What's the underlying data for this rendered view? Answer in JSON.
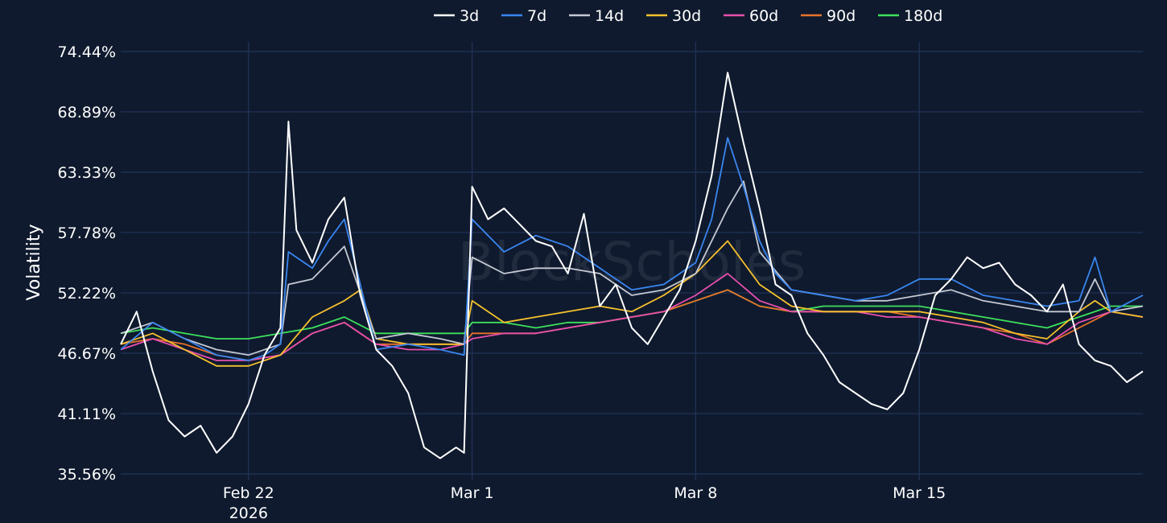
{
  "chart_data": {
    "type": "line",
    "title": "",
    "ylabel": "Volatility",
    "xlabel": "",
    "ylim": [
      35.56,
      74.44
    ],
    "yticks": [
      {
        "value": 74.44,
        "label": "74.44%"
      },
      {
        "value": 68.89,
        "label": "68.89%"
      },
      {
        "value": 63.33,
        "label": "63.33%"
      },
      {
        "value": 57.78,
        "label": "57.78%"
      },
      {
        "value": 52.22,
        "label": "52.22%"
      },
      {
        "value": 46.67,
        "label": "46.67%"
      },
      {
        "value": 41.11,
        "label": "41.11%"
      },
      {
        "value": 35.56,
        "label": "35.56%"
      }
    ],
    "x_unit": "date",
    "xlim": [
      "2026-02-18",
      "2026-03-22"
    ],
    "xticks": [
      {
        "value": "2026-02-22",
        "label": "Feb 22",
        "sublabel": "2026"
      },
      {
        "value": "2026-03-01",
        "label": "Mar 1",
        "sublabel": ""
      },
      {
        "value": "2026-03-08",
        "label": "Mar 8",
        "sublabel": ""
      },
      {
        "value": "2026-03-15",
        "label": "Mar 15",
        "sublabel": ""
      }
    ],
    "grid": true,
    "legend_position": "top",
    "watermark": "BlockScholes",
    "series": [
      {
        "name": "3d",
        "color": "#ffffff",
        "x": [
          "2026-02-18",
          "2026-02-18T12:00",
          "2026-02-19",
          "2026-02-19T12:00",
          "2026-02-20",
          "2026-02-20T12:00",
          "2026-02-21",
          "2026-02-21T12:00",
          "2026-02-22",
          "2026-02-22T12:00",
          "2026-02-23",
          "2026-02-23T06:00",
          "2026-02-23T12:00",
          "2026-02-24",
          "2026-02-24T12:00",
          "2026-02-25",
          "2026-02-25T12:00",
          "2026-02-26",
          "2026-02-26T12:00",
          "2026-02-27",
          "2026-02-27T12:00",
          "2026-02-28",
          "2026-02-28T12:00",
          "2026-02-28T18:00",
          "2026-03-01",
          "2026-03-01T12:00",
          "2026-03-02",
          "2026-03-02T12:00",
          "2026-03-03",
          "2026-03-03T12:00",
          "2026-03-04",
          "2026-03-04T12:00",
          "2026-03-05",
          "2026-03-05T12:00",
          "2026-03-06",
          "2026-03-06T12:00",
          "2026-03-07",
          "2026-03-07T12:00",
          "2026-03-08",
          "2026-03-08T12:00",
          "2026-03-09",
          "2026-03-09T12:00",
          "2026-03-10",
          "2026-03-10T12:00",
          "2026-03-11",
          "2026-03-11T12:00",
          "2026-03-12",
          "2026-03-12T12:00",
          "2026-03-13",
          "2026-03-13T12:00",
          "2026-03-14",
          "2026-03-14T12:00",
          "2026-03-15",
          "2026-03-15T12:00",
          "2026-03-16",
          "2026-03-16T12:00",
          "2026-03-17",
          "2026-03-17T12:00",
          "2026-03-18",
          "2026-03-18T12:00",
          "2026-03-19",
          "2026-03-19T12:00",
          "2026-03-20",
          "2026-03-20T12:00",
          "2026-03-21",
          "2026-03-21T12:00",
          "2026-03-22"
        ],
        "values": [
          47.5,
          50.5,
          45.0,
          40.5,
          39.0,
          40.0,
          37.5,
          39.0,
          42.0,
          46.5,
          49.0,
          68.0,
          58.0,
          55.0,
          59.0,
          61.0,
          52.0,
          47.0,
          45.5,
          43.0,
          38.0,
          37.0,
          38.0,
          37.5,
          62.0,
          59.0,
          60.0,
          58.5,
          57.0,
          56.5,
          54.0,
          59.5,
          51.0,
          53.0,
          49.0,
          47.5,
          50.0,
          52.5,
          57.0,
          63.0,
          72.5,
          66.0,
          60.0,
          53.0,
          52.0,
          48.5,
          46.5,
          44.0,
          43.0,
          42.0,
          41.5,
          43.0,
          47.0,
          52.0,
          53.5,
          55.5,
          54.5,
          55.0,
          53.0,
          52.0,
          50.5,
          53.0,
          47.5,
          46.0,
          45.5,
          44.0,
          45.0
        ]
      },
      {
        "name": "7d",
        "color": "#3a86f0",
        "x": [
          "2026-02-18",
          "2026-02-19",
          "2026-02-20",
          "2026-02-21",
          "2026-02-22",
          "2026-02-22T12:00",
          "2026-02-23",
          "2026-02-23T06:00",
          "2026-02-24",
          "2026-02-24T12:00",
          "2026-02-25",
          "2026-02-26",
          "2026-02-27",
          "2026-02-28",
          "2026-02-28T18:00",
          "2026-03-01",
          "2026-03-02",
          "2026-03-03",
          "2026-03-04",
          "2026-03-05",
          "2026-03-06",
          "2026-03-07",
          "2026-03-08",
          "2026-03-08T12:00",
          "2026-03-09",
          "2026-03-09T12:00",
          "2026-03-10",
          "2026-03-10T12:00",
          "2026-03-11",
          "2026-03-12",
          "2026-03-13",
          "2026-03-14",
          "2026-03-15",
          "2026-03-16",
          "2026-03-17",
          "2026-03-18",
          "2026-03-19",
          "2026-03-20",
          "2026-03-20T12:00",
          "2026-03-21",
          "2026-03-22"
        ],
        "values": [
          47.0,
          49.5,
          48.0,
          46.5,
          46.0,
          46.5,
          47.5,
          56.0,
          54.5,
          57.0,
          59.0,
          47.0,
          47.5,
          47.0,
          46.5,
          59.0,
          56.0,
          57.5,
          56.5,
          54.5,
          52.5,
          53.0,
          55.0,
          59.0,
          66.5,
          62.0,
          57.0,
          54.0,
          52.5,
          52.0,
          51.5,
          52.0,
          53.5,
          53.5,
          52.0,
          51.5,
          51.0,
          51.5,
          55.5,
          50.5,
          52.0
        ]
      },
      {
        "name": "14d",
        "color": "#c4c9d3",
        "x": [
          "2026-02-18",
          "2026-02-19",
          "2026-02-20",
          "2026-02-21",
          "2026-02-22",
          "2026-02-23",
          "2026-02-23T06:00",
          "2026-02-24",
          "2026-02-24T12:00",
          "2026-02-25",
          "2026-02-26",
          "2026-02-27",
          "2026-02-28",
          "2026-02-28T18:00",
          "2026-03-01",
          "2026-03-02",
          "2026-03-03",
          "2026-03-04",
          "2026-03-05",
          "2026-03-06",
          "2026-03-07",
          "2026-03-08",
          "2026-03-09",
          "2026-03-09T12:00",
          "2026-03-10",
          "2026-03-11",
          "2026-03-12",
          "2026-03-13",
          "2026-03-14",
          "2026-03-15",
          "2026-03-16",
          "2026-03-17",
          "2026-03-18",
          "2026-03-19",
          "2026-03-20",
          "2026-03-20T12:00",
          "2026-03-21",
          "2026-03-22"
        ],
        "values": [
          48.5,
          49.5,
          48.0,
          47.0,
          46.5,
          47.5,
          53.0,
          53.5,
          55.0,
          56.5,
          48.0,
          48.5,
          48.0,
          47.5,
          55.5,
          54.0,
          54.5,
          54.5,
          54.0,
          52.0,
          52.5,
          54.0,
          60.0,
          62.5,
          56.0,
          52.5,
          52.0,
          51.5,
          51.5,
          52.0,
          52.5,
          51.5,
          51.0,
          50.5,
          50.5,
          53.5,
          50.5,
          51.0
        ]
      },
      {
        "name": "30d",
        "color": "#f6c12c",
        "x": [
          "2026-02-18",
          "2026-02-19",
          "2026-02-20",
          "2026-02-21",
          "2026-02-22",
          "2026-02-23",
          "2026-02-24",
          "2026-02-25",
          "2026-02-25T12:00",
          "2026-02-26",
          "2026-02-27",
          "2026-02-28",
          "2026-02-28T18:00",
          "2026-03-01",
          "2026-03-02",
          "2026-03-03",
          "2026-03-04",
          "2026-03-05",
          "2026-03-06",
          "2026-03-07",
          "2026-03-08",
          "2026-03-09",
          "2026-03-10",
          "2026-03-11",
          "2026-03-12",
          "2026-03-13",
          "2026-03-14",
          "2026-03-15",
          "2026-03-16",
          "2026-03-17",
          "2026-03-18",
          "2026-03-19",
          "2026-03-20",
          "2026-03-20T12:00",
          "2026-03-21",
          "2026-03-22"
        ],
        "values": [
          47.5,
          48.5,
          47.0,
          45.5,
          45.5,
          46.5,
          50.0,
          51.5,
          52.5,
          48.0,
          47.5,
          47.5,
          47.5,
          51.5,
          49.5,
          50.0,
          50.5,
          51.0,
          50.5,
          52.0,
          54.0,
          57.0,
          53.0,
          51.0,
          50.5,
          50.5,
          50.5,
          50.5,
          50.0,
          49.5,
          48.5,
          48.0,
          50.5,
          51.5,
          50.5,
          50.0
        ]
      },
      {
        "name": "60d",
        "color": "#e84fae",
        "x": [
          "2026-02-18",
          "2026-02-19",
          "2026-02-20",
          "2026-02-21",
          "2026-02-22",
          "2026-02-23",
          "2026-02-24",
          "2026-02-25",
          "2026-02-26",
          "2026-02-27",
          "2026-02-28",
          "2026-02-28T18:00",
          "2026-03-01",
          "2026-03-02",
          "2026-03-03",
          "2026-03-04",
          "2026-03-05",
          "2026-03-06",
          "2026-03-07",
          "2026-03-08",
          "2026-03-09",
          "2026-03-10",
          "2026-03-11",
          "2026-03-12",
          "2026-03-13",
          "2026-03-14",
          "2026-03-15",
          "2026-03-16",
          "2026-03-17",
          "2026-03-18",
          "2026-03-19",
          "2026-03-20",
          "2026-03-21",
          "2026-03-22"
        ],
        "values": [
          47.0,
          48.0,
          47.0,
          46.0,
          46.0,
          46.5,
          48.5,
          49.5,
          47.5,
          47.0,
          47.0,
          47.5,
          48.0,
          48.5,
          48.5,
          49.0,
          49.5,
          50.0,
          50.5,
          52.0,
          54.0,
          51.5,
          50.5,
          50.5,
          50.5,
          50.0,
          50.0,
          49.5,
          49.0,
          48.0,
          47.5,
          49.5,
          50.5,
          50.0
        ]
      },
      {
        "name": "90d",
        "color": "#e8722a",
        "x": [
          "2026-02-18",
          "2026-02-19",
          "2026-02-20",
          "2026-02-21",
          "2026-02-22",
          "2026-02-23",
          "2026-02-24",
          "2026-02-25",
          "2026-02-26",
          "2026-02-27",
          "2026-02-28",
          "2026-02-28T18:00",
          "2026-03-01",
          "2026-03-02",
          "2026-03-03",
          "2026-03-04",
          "2026-03-05",
          "2026-03-06",
          "2026-03-07",
          "2026-03-08",
          "2026-03-09",
          "2026-03-10",
          "2026-03-11",
          "2026-03-12",
          "2026-03-13",
          "2026-03-14",
          "2026-03-15",
          "2026-03-16",
          "2026-03-17",
          "2026-03-18",
          "2026-03-19",
          "2026-03-20",
          "2026-03-21",
          "2026-03-22"
        ],
        "values": [
          47.5,
          48.0,
          47.5,
          46.5,
          46.0,
          46.5,
          48.5,
          49.5,
          47.5,
          47.5,
          47.5,
          47.5,
          48.5,
          48.5,
          48.5,
          49.0,
          49.5,
          50.0,
          50.5,
          51.5,
          52.5,
          51.0,
          50.5,
          50.5,
          50.5,
          50.5,
          50.0,
          49.5,
          49.0,
          48.5,
          47.5,
          49.0,
          50.5,
          50.0
        ]
      },
      {
        "name": "180d",
        "color": "#3ee15c",
        "x": [
          "2026-02-18",
          "2026-02-19",
          "2026-02-20",
          "2026-02-21",
          "2026-02-22",
          "2026-02-23",
          "2026-02-24",
          "2026-02-25",
          "2026-02-26",
          "2026-02-27",
          "2026-02-28",
          "2026-02-28T18:00",
          "2026-03-01",
          "2026-03-02",
          "2026-03-03",
          "2026-03-04",
          "2026-03-05",
          "2026-03-06",
          "2026-03-07",
          "2026-03-08",
          "2026-03-09",
          "2026-03-10",
          "2026-03-11",
          "2026-03-12",
          "2026-03-13",
          "2026-03-14",
          "2026-03-15",
          "2026-03-16",
          "2026-03-17",
          "2026-03-18",
          "2026-03-19",
          "2026-03-20",
          "2026-03-21",
          "2026-03-22"
        ],
        "values": [
          48.5,
          49.0,
          48.5,
          48.0,
          48.0,
          48.5,
          49.0,
          50.0,
          48.5,
          48.5,
          48.5,
          48.5,
          49.5,
          49.5,
          49.0,
          49.5,
          49.5,
          50.0,
          50.5,
          51.5,
          52.5,
          51.0,
          50.5,
          51.0,
          51.0,
          51.0,
          51.0,
          50.5,
          50.0,
          49.5,
          49.0,
          50.0,
          51.0,
          51.0
        ]
      }
    ]
  }
}
